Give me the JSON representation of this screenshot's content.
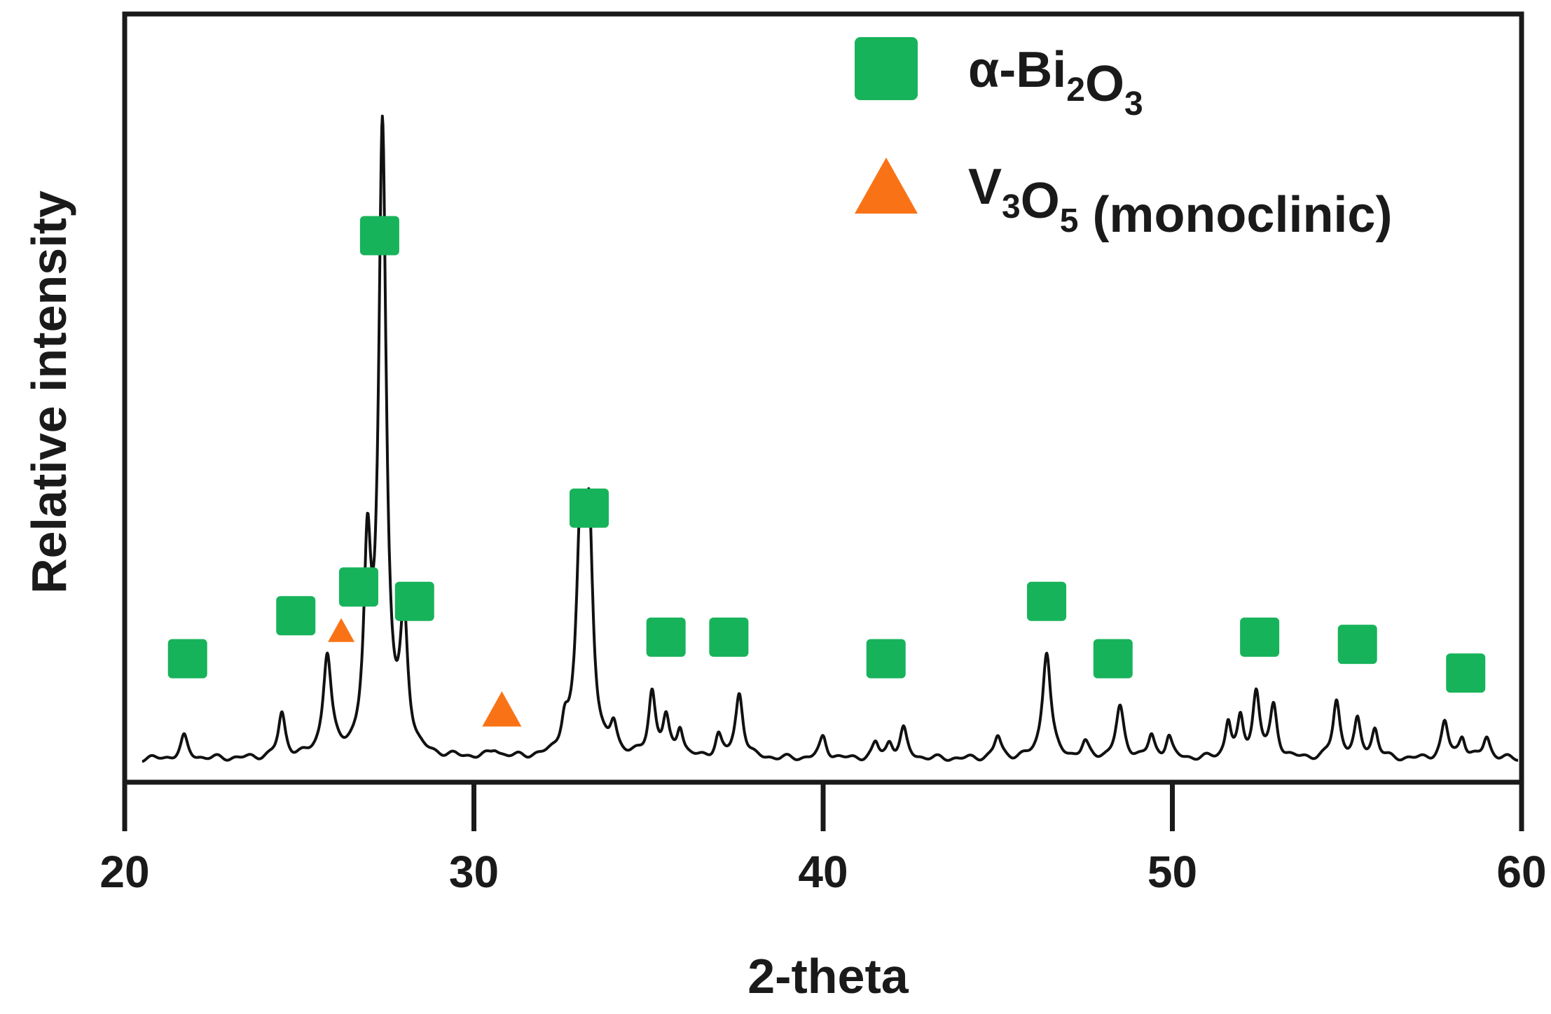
{
  "chart_data": {
    "type": "line",
    "xlabel": "2-theta",
    "ylabel": "Relative intensity",
    "xlim": [
      20,
      60
    ],
    "ylim": [
      0,
      100
    ],
    "xticks": [
      20,
      30,
      40,
      50,
      60
    ],
    "grid": false,
    "yticks_shown": false,
    "legend_position": "top-right",
    "colors": {
      "line": "#111111",
      "bi2o3": "#17b35a",
      "v3o5": "#f97316",
      "axis": "#1a1a1a"
    },
    "legend": [
      {
        "marker": "square",
        "label": "α-Bi",
        "sub1": "2",
        "mid": "O",
        "sub2": "3",
        "tail": ""
      },
      {
        "marker": "triangle",
        "label": "V",
        "sub1": "3",
        "mid": "O",
        "sub2": "5",
        "tail": " (monoclinic)"
      }
    ],
    "baseline": 3,
    "peaks": [
      {
        "x": 21.7,
        "h": 3,
        "w": 0.12
      },
      {
        "x": 24.5,
        "h": 6,
        "w": 0.12
      },
      {
        "x": 25.8,
        "h": 14,
        "w": 0.14
      },
      {
        "x": 26.95,
        "h": 26,
        "w": 0.12
      },
      {
        "x": 27.38,
        "h": 87,
        "w": 0.13
      },
      {
        "x": 28.0,
        "h": 18,
        "w": 0.13
      },
      {
        "x": 30.6,
        "h": 1,
        "w": 0.15
      },
      {
        "x": 32.6,
        "h": 4,
        "w": 0.12
      },
      {
        "x": 33.05,
        "h": 30,
        "w": 0.14
      },
      {
        "x": 33.3,
        "h": 30,
        "w": 0.13
      },
      {
        "x": 34.0,
        "h": 4,
        "w": 0.12
      },
      {
        "x": 35.1,
        "h": 9,
        "w": 0.12
      },
      {
        "x": 35.5,
        "h": 5,
        "w": 0.11
      },
      {
        "x": 35.9,
        "h": 4,
        "w": 0.11
      },
      {
        "x": 37.0,
        "h": 3,
        "w": 0.11
      },
      {
        "x": 37.6,
        "h": 9,
        "w": 0.13
      },
      {
        "x": 40.0,
        "h": 3,
        "w": 0.12
      },
      {
        "x": 41.5,
        "h": 2,
        "w": 0.11
      },
      {
        "x": 41.9,
        "h": 2,
        "w": 0.11
      },
      {
        "x": 42.3,
        "h": 4,
        "w": 0.12
      },
      {
        "x": 45.0,
        "h": 3,
        "w": 0.12
      },
      {
        "x": 46.4,
        "h": 15,
        "w": 0.14
      },
      {
        "x": 47.5,
        "h": 2,
        "w": 0.12
      },
      {
        "x": 48.5,
        "h": 7,
        "w": 0.14
      },
      {
        "x": 49.4,
        "h": 3,
        "w": 0.11
      },
      {
        "x": 49.9,
        "h": 3,
        "w": 0.11
      },
      {
        "x": 51.6,
        "h": 5,
        "w": 0.1
      },
      {
        "x": 51.95,
        "h": 5,
        "w": 0.1
      },
      {
        "x": 52.4,
        "h": 9,
        "w": 0.12
      },
      {
        "x": 52.9,
        "h": 7,
        "w": 0.12
      },
      {
        "x": 54.7,
        "h": 8,
        "w": 0.12
      },
      {
        "x": 55.3,
        "h": 5,
        "w": 0.11
      },
      {
        "x": 55.8,
        "h": 4,
        "w": 0.11
      },
      {
        "x": 57.8,
        "h": 5,
        "w": 0.12
      },
      {
        "x": 58.3,
        "h": 3,
        "w": 0.11
      },
      {
        "x": 59.0,
        "h": 3,
        "w": 0.12
      }
    ],
    "markers_bi2o3": [
      {
        "x": 21.8,
        "y": 14
      },
      {
        "x": 24.9,
        "y": 20
      },
      {
        "x": 26.7,
        "y": 24
      },
      {
        "x": 27.3,
        "y": 73
      },
      {
        "x": 28.3,
        "y": 22
      },
      {
        "x": 33.3,
        "y": 35
      },
      {
        "x": 35.5,
        "y": 17
      },
      {
        "x": 37.3,
        "y": 17
      },
      {
        "x": 41.8,
        "y": 14
      },
      {
        "x": 46.4,
        "y": 22
      },
      {
        "x": 48.3,
        "y": 14
      },
      {
        "x": 52.5,
        "y": 17
      },
      {
        "x": 55.3,
        "y": 16
      },
      {
        "x": 58.4,
        "y": 12
      }
    ],
    "markers_v3o5": [
      {
        "x": 26.2,
        "y": 18,
        "size": "small"
      },
      {
        "x": 30.8,
        "y": 7,
        "size": "large"
      }
    ]
  }
}
